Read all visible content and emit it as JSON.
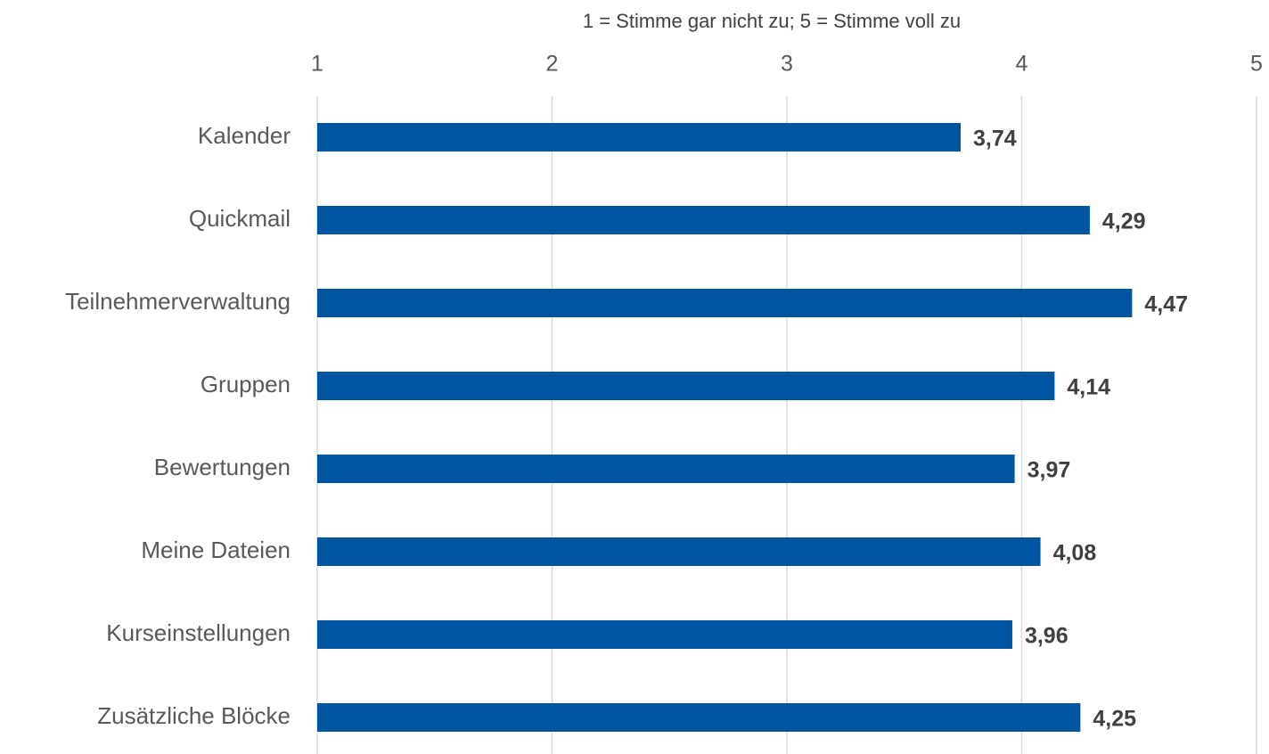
{
  "chart_data": {
    "type": "barh",
    "x_label": "1 = Stimme gar nicht zu; 5 = Stimme voll zu",
    "categories": [
      "Kalender",
      "Quickmail",
      "Teilnehmerverwaltung",
      "Gruppen",
      "Bewertungen",
      "Meine Dateien",
      "Kurseinstellungen",
      "Zusätzliche Blöcke"
    ],
    "values": [
      3.74,
      4.29,
      4.47,
      4.14,
      3.97,
      4.08,
      3.96,
      4.25
    ],
    "value_labels": [
      "3,74",
      "4,29",
      "4,47",
      "4,14",
      "3,97",
      "4,08",
      "3,96",
      "4,25"
    ],
    "color": "#0055a0",
    "xlim": [
      1,
      5
    ],
    "xticks": [
      1,
      2,
      3,
      4,
      5
    ],
    "grid": true
  }
}
